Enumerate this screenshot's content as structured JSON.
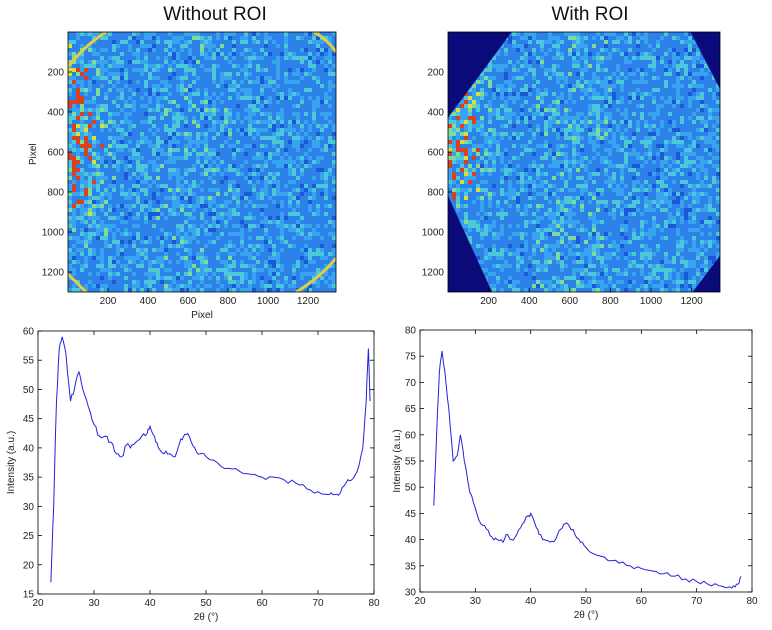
{
  "titles": {
    "left": "Without ROI",
    "right": "With ROI"
  },
  "colors": {
    "line": "#2222dd",
    "map_background": "#2c82e8",
    "mask": "#0a0a7a",
    "edge_hot": "#e0d040"
  },
  "chart_data": [
    {
      "type": "heatmap",
      "name": "detector-image-without-roi",
      "xlim": [
        0,
        1340
      ],
      "ylim": [
        0,
        1300
      ],
      "xticks": [
        200,
        400,
        600,
        800,
        1000,
        1200
      ],
      "yticks": [
        200,
        400,
        600,
        800,
        1000,
        1200
      ],
      "xlabel": "Pixel",
      "ylabel": "Pixel",
      "roi_mask": false
    },
    {
      "type": "heatmap",
      "name": "detector-image-with-roi",
      "xlim": [
        0,
        1340
      ],
      "ylim": [
        0,
        1300
      ],
      "xticks": [
        200,
        400,
        600,
        800,
        1000,
        1200
      ],
      "yticks": [
        200,
        400,
        600,
        800,
        1000,
        1200
      ],
      "xlabel": "",
      "ylabel": "",
      "roi_mask": true
    },
    {
      "type": "line",
      "name": "profile-without-roi",
      "xlabel": "2θ (°)",
      "ylabel": "Intensity (a.u.)",
      "xlim": [
        20,
        80
      ],
      "ylim": [
        15,
        60
      ],
      "xticks": [
        20,
        30,
        40,
        50,
        60,
        70,
        80
      ],
      "yticks": [
        15,
        20,
        25,
        30,
        35,
        40,
        45,
        50,
        55,
        60
      ],
      "x": [
        22.3,
        22.8,
        23.3,
        23.8,
        24.3,
        25,
        25.8,
        26.5,
        27.3,
        28,
        29,
        30,
        31,
        32,
        33,
        34,
        35,
        35.8,
        36.5,
        37.5,
        38.5,
        39.5,
        40,
        40.8,
        41.5,
        42.5,
        43.5,
        44.5,
        45.5,
        46.2,
        47,
        48,
        49,
        50,
        52,
        54,
        56,
        58,
        60,
        62,
        64,
        66,
        68,
        70,
        72,
        73,
        74,
        75,
        76,
        77,
        78,
        78.6,
        79,
        79.3
      ],
      "values": [
        17,
        30,
        48,
        57,
        59,
        56,
        48,
        50,
        53,
        50,
        47,
        44,
        42,
        42,
        41,
        39,
        38.5,
        40.5,
        40,
        41,
        42,
        42.5,
        43.7,
        42,
        40,
        39,
        39,
        38.5,
        41.5,
        42.3,
        42,
        40,
        39,
        38.5,
        37.5,
        36.5,
        36,
        35.5,
        35,
        35,
        34.5,
        34,
        33,
        32.5,
        32,
        32,
        32.3,
        34,
        34.5,
        36,
        40,
        48,
        57,
        48
      ]
    },
    {
      "type": "line",
      "name": "profile-with-roi",
      "xlabel": "2θ (°)",
      "ylabel": "Intensity (a.u.)",
      "xlim": [
        20,
        80
      ],
      "ylim": [
        30,
        80
      ],
      "xticks": [
        20,
        30,
        40,
        50,
        60,
        70,
        80
      ],
      "yticks": [
        30,
        35,
        40,
        45,
        50,
        55,
        60,
        65,
        70,
        75,
        80
      ],
      "x": [
        22.5,
        23,
        23.5,
        24,
        24.5,
        25.2,
        26,
        26.7,
        27.3,
        28,
        29,
        30,
        31,
        32,
        33,
        34,
        35,
        35.8,
        36.5,
        37.5,
        38.5,
        39.5,
        40,
        40.8,
        41.5,
        42.5,
        43.5,
        44.5,
        45.5,
        46.2,
        47,
        48,
        49,
        50,
        52,
        54,
        56,
        58,
        60,
        62,
        64,
        66,
        68,
        70,
        72,
        74,
        76,
        77,
        77.5,
        78
      ],
      "values": [
        46.5,
        60,
        72,
        76,
        72,
        65,
        55,
        56,
        60,
        55,
        49,
        46,
        43,
        42,
        40.5,
        40,
        39.5,
        41,
        40,
        41,
        43,
        44.5,
        45,
        43,
        41,
        40,
        39.5,
        40,
        42,
        43,
        42.5,
        41,
        39.5,
        38.5,
        37,
        36,
        35.5,
        35,
        34.5,
        34,
        33.5,
        33,
        32.5,
        32,
        31.5,
        31.2,
        31,
        31,
        31.5,
        33
      ]
    }
  ]
}
